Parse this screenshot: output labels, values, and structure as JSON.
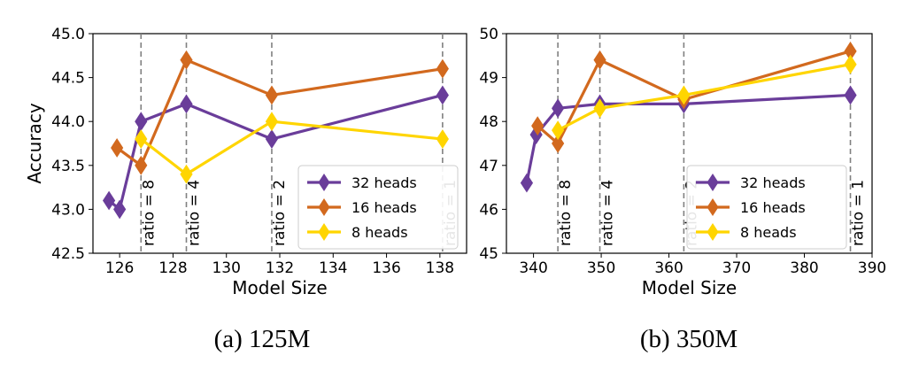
{
  "chart_data": [
    {
      "type": "line",
      "caption": "(a) 125M",
      "xlabel": "Model Size",
      "ylabel": "Accuracy",
      "xlim": [
        125.0,
        139.0
      ],
      "ylim": [
        42.5,
        45.0
      ],
      "xticks": [
        126,
        128,
        130,
        132,
        134,
        136,
        138
      ],
      "xtick_labels": [
        "126",
        "128",
        "130",
        "132",
        "134",
        "136",
        "138"
      ],
      "yticks": [
        42.5,
        43.0,
        43.5,
        44.0,
        44.5,
        45.0
      ],
      "ytick_labels": [
        "42.5",
        "43.0",
        "43.5",
        "44.0",
        "44.5",
        "45.0"
      ],
      "grid": false,
      "legend_position": "lower-right",
      "vlines": [
        {
          "x": 126.8,
          "label": "ratio = 8"
        },
        {
          "x": 128.5,
          "label": "ratio = 4"
        },
        {
          "x": 131.7,
          "label": "ratio = 2"
        },
        {
          "x": 138.1,
          "label": "ratio = 1"
        }
      ],
      "series": [
        {
          "name": "32 heads",
          "color": "#6a3d9a",
          "x": [
            125.6,
            126.0,
            126.8,
            128.5,
            131.7,
            138.1
          ],
          "y": [
            43.1,
            43.0,
            44.0,
            44.2,
            43.8,
            44.3
          ]
        },
        {
          "name": "16 heads",
          "color": "#d2691e",
          "x": [
            125.9,
            126.8,
            128.5,
            131.7,
            138.1
          ],
          "y": [
            43.7,
            43.5,
            44.7,
            44.3,
            44.6
          ]
        },
        {
          "name": "8 heads",
          "color": "#ffd500",
          "x": [
            126.8,
            128.5,
            131.7,
            138.1
          ],
          "y": [
            43.8,
            43.4,
            44.0,
            43.8
          ]
        }
      ]
    },
    {
      "type": "line",
      "caption": "(b) 350M",
      "xlabel": "Model Size",
      "ylabel": "",
      "xlim": [
        336,
        390
      ],
      "ylim": [
        45,
        50
      ],
      "xticks": [
        340,
        350,
        360,
        370,
        380,
        390
      ],
      "xtick_labels": [
        "340",
        "350",
        "360",
        "370",
        "380",
        "390"
      ],
      "yticks": [
        45,
        46,
        47,
        48,
        49,
        50
      ],
      "ytick_labels": [
        "45",
        "46",
        "47",
        "48",
        "49",
        "50"
      ],
      "grid": false,
      "legend_position": "lower-right",
      "vlines": [
        {
          "x": 343.6,
          "label": "ratio = 8"
        },
        {
          "x": 349.8,
          "label": "ratio = 4"
        },
        {
          "x": 362.2,
          "label": "ratio = 2"
        },
        {
          "x": 386.8,
          "label": "ratio = 1"
        }
      ],
      "series": [
        {
          "name": "32 heads",
          "color": "#6a3d9a",
          "x": [
            339.0,
            340.4,
            343.6,
            349.8,
            362.2,
            386.8
          ],
          "y": [
            46.6,
            47.7,
            48.3,
            48.4,
            48.4,
            48.6
          ]
        },
        {
          "name": "16 heads",
          "color": "#d2691e",
          "x": [
            340.6,
            343.6,
            349.8,
            362.2,
            386.8
          ],
          "y": [
            47.9,
            47.5,
            49.4,
            48.5,
            49.6
          ]
        },
        {
          "name": "8 heads",
          "color": "#ffd500",
          "x": [
            343.6,
            349.8,
            362.2,
            386.8
          ],
          "y": [
            47.8,
            48.3,
            48.6,
            49.3
          ]
        }
      ]
    }
  ]
}
